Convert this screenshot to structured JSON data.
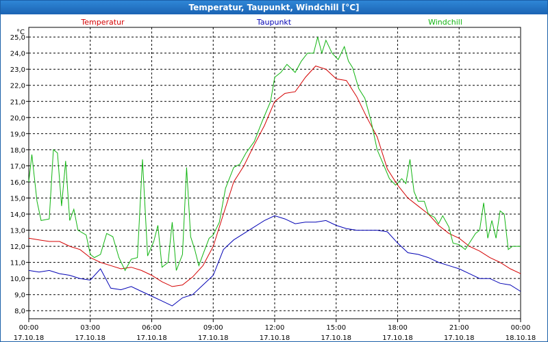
{
  "window": {
    "title": "Temperatur, Taupunkt, Windchill [°C]"
  },
  "chart_data": {
    "type": "line",
    "title": "Temperatur, Taupunkt, Windchill [°C]",
    "ylabel": "°C",
    "ylim": [
      7.5,
      25.6
    ],
    "yticks": [
      "8,0",
      "9,0",
      "10,0",
      "11,0",
      "12,0",
      "13,0",
      "14,0",
      "15,0",
      "16,0",
      "17,0",
      "18,0",
      "19,0",
      "20,0",
      "21,0",
      "22,0",
      "23,0",
      "24,0",
      "25,0"
    ],
    "yticks_values": [
      8,
      9,
      10,
      11,
      12,
      13,
      14,
      15,
      16,
      17,
      18,
      19,
      20,
      21,
      22,
      23,
      24,
      25
    ],
    "xlim": [
      0,
      24
    ],
    "xticks": [
      {
        "x": 0,
        "time": "00:00",
        "date": "17.10.18"
      },
      {
        "x": 3,
        "time": "03:00",
        "date": "17.10.18"
      },
      {
        "x": 6,
        "time": "06:00",
        "date": "17.10.18"
      },
      {
        "x": 9,
        "time": "09:00",
        "date": "17.10.18"
      },
      {
        "x": 12,
        "time": "12:00",
        "date": "17.10.18"
      },
      {
        "x": 15,
        "time": "15:00",
        "date": "17.10.18"
      },
      {
        "x": 18,
        "time": "18:00",
        "date": "17.10.18"
      },
      {
        "x": 21,
        "time": "21:00",
        "date": "17.10.18"
      },
      {
        "x": 24,
        "time": "00:00",
        "date": "18.10.18"
      }
    ],
    "grid": true,
    "legend": "top",
    "series": [
      {
        "name": "Temperatur",
        "color": "#d40000",
        "points": [
          [
            0,
            12.5
          ],
          [
            0.5,
            12.4
          ],
          [
            1,
            12.3
          ],
          [
            1.5,
            12.3
          ],
          [
            2,
            12.0
          ],
          [
            2.5,
            11.8
          ],
          [
            3,
            11.3
          ],
          [
            3.5,
            11.0
          ],
          [
            4,
            10.8
          ],
          [
            4.5,
            10.6
          ],
          [
            5,
            10.7
          ],
          [
            5.5,
            10.5
          ],
          [
            6,
            10.2
          ],
          [
            6.5,
            9.8
          ],
          [
            7,
            9.5
          ],
          [
            7.5,
            9.6
          ],
          [
            8,
            10.1
          ],
          [
            8.5,
            10.8
          ],
          [
            9,
            12.0
          ],
          [
            9.5,
            14.0
          ],
          [
            10,
            16.0
          ],
          [
            10.5,
            17.0
          ],
          [
            11,
            18.3
          ],
          [
            11.5,
            19.5
          ],
          [
            12,
            21.0
          ],
          [
            12.5,
            21.5
          ],
          [
            13,
            21.6
          ],
          [
            13.5,
            22.5
          ],
          [
            14,
            23.2
          ],
          [
            14.5,
            23.0
          ],
          [
            15,
            22.4
          ],
          [
            15.5,
            22.3
          ],
          [
            16,
            21.3
          ],
          [
            16.5,
            20.0
          ],
          [
            17,
            18.8
          ],
          [
            17.5,
            16.8
          ],
          [
            18,
            15.8
          ],
          [
            18.5,
            15.0
          ],
          [
            19,
            14.5
          ],
          [
            19.5,
            14.0
          ],
          [
            20,
            13.3
          ],
          [
            20.5,
            12.8
          ],
          [
            21,
            12.5
          ],
          [
            21.5,
            12.0
          ],
          [
            22,
            11.7
          ],
          [
            22.5,
            11.3
          ],
          [
            23,
            11.0
          ],
          [
            23.5,
            10.6
          ],
          [
            24,
            10.3
          ]
        ]
      },
      {
        "name": "Taupunkt",
        "color": "#0000b4",
        "points": [
          [
            0,
            10.5
          ],
          [
            0.5,
            10.4
          ],
          [
            1,
            10.5
          ],
          [
            1.5,
            10.3
          ],
          [
            2,
            10.2
          ],
          [
            2.5,
            10.0
          ],
          [
            3,
            9.9
          ],
          [
            3.5,
            10.6
          ],
          [
            4,
            9.4
          ],
          [
            4.5,
            9.3
          ],
          [
            5,
            9.5
          ],
          [
            5.5,
            9.2
          ],
          [
            6,
            8.9
          ],
          [
            6.5,
            8.6
          ],
          [
            7,
            8.3
          ],
          [
            7.5,
            8.8
          ],
          [
            8,
            9.0
          ],
          [
            8.5,
            9.6
          ],
          [
            9,
            10.2
          ],
          [
            9.5,
            11.8
          ],
          [
            10,
            12.4
          ],
          [
            10.5,
            12.8
          ],
          [
            11,
            13.2
          ],
          [
            11.5,
            13.6
          ],
          [
            12,
            13.9
          ],
          [
            12.5,
            13.7
          ],
          [
            13,
            13.4
          ],
          [
            13.5,
            13.5
          ],
          [
            14,
            13.5
          ],
          [
            14.5,
            13.6
          ],
          [
            15,
            13.3
          ],
          [
            15.5,
            13.1
          ],
          [
            16,
            13.0
          ],
          [
            16.5,
            13.0
          ],
          [
            17,
            13.0
          ],
          [
            17.5,
            12.9
          ],
          [
            18,
            12.2
          ],
          [
            18.5,
            11.6
          ],
          [
            19,
            11.5
          ],
          [
            19.5,
            11.3
          ],
          [
            20,
            11.0
          ],
          [
            20.5,
            10.8
          ],
          [
            21,
            10.6
          ],
          [
            21.5,
            10.3
          ],
          [
            22,
            10.0
          ],
          [
            22.5,
            10.0
          ],
          [
            23,
            9.7
          ],
          [
            23.5,
            9.6
          ],
          [
            24,
            9.2
          ]
        ]
      },
      {
        "name": "Windchill",
        "color": "#10b410",
        "points": [
          [
            0,
            16.0
          ],
          [
            0.15,
            17.7
          ],
          [
            0.4,
            14.8
          ],
          [
            0.6,
            13.6
          ],
          [
            1,
            13.7
          ],
          [
            1.2,
            18.0
          ],
          [
            1.4,
            17.8
          ],
          [
            1.6,
            14.5
          ],
          [
            1.8,
            17.3
          ],
          [
            2,
            13.6
          ],
          [
            2.2,
            14.3
          ],
          [
            2.4,
            13.0
          ],
          [
            2.8,
            12.7
          ],
          [
            3,
            11.5
          ],
          [
            3.2,
            11.3
          ],
          [
            3.5,
            11.5
          ],
          [
            3.8,
            12.8
          ],
          [
            4.1,
            12.6
          ],
          [
            4.4,
            11.3
          ],
          [
            4.7,
            10.5
          ],
          [
            5,
            11.2
          ],
          [
            5.3,
            11.3
          ],
          [
            5.55,
            17.4
          ],
          [
            5.8,
            11.4
          ],
          [
            6.1,
            12.3
          ],
          [
            6.3,
            13.3
          ],
          [
            6.5,
            10.7
          ],
          [
            6.8,
            11.0
          ],
          [
            7,
            13.5
          ],
          [
            7.2,
            10.5
          ],
          [
            7.5,
            11.5
          ],
          [
            7.7,
            16.9
          ],
          [
            7.9,
            12.6
          ],
          [
            8.1,
            11.8
          ],
          [
            8.3,
            10.8
          ],
          [
            8.5,
            11.5
          ],
          [
            8.8,
            12.5
          ],
          [
            9,
            12.7
          ],
          [
            9.3,
            13.5
          ],
          [
            9.6,
            15.6
          ],
          [
            10,
            16.9
          ],
          [
            10.3,
            17.1
          ],
          [
            10.6,
            17.8
          ],
          [
            11,
            18.5
          ],
          [
            11.4,
            19.8
          ],
          [
            11.8,
            21.0
          ],
          [
            12,
            22.5
          ],
          [
            12.3,
            22.8
          ],
          [
            12.6,
            23.3
          ],
          [
            13,
            22.8
          ],
          [
            13.3,
            23.5
          ],
          [
            13.6,
            24.0
          ],
          [
            13.9,
            24.0
          ],
          [
            14.1,
            25.0
          ],
          [
            14.3,
            24.0
          ],
          [
            14.5,
            24.8
          ],
          [
            14.8,
            24.0
          ],
          [
            15.1,
            23.6
          ],
          [
            15.4,
            24.4
          ],
          [
            15.6,
            23.5
          ],
          [
            15.8,
            23.1
          ],
          [
            16.1,
            21.8
          ],
          [
            16.4,
            21.2
          ],
          [
            16.7,
            19.8
          ],
          [
            17,
            18.0
          ],
          [
            17.3,
            17.1
          ],
          [
            17.6,
            16.2
          ],
          [
            17.9,
            15.8
          ],
          [
            18.2,
            16.2
          ],
          [
            18.4,
            15.9
          ],
          [
            18.6,
            17.4
          ],
          [
            18.8,
            15.4
          ],
          [
            19,
            14.8
          ],
          [
            19.3,
            14.8
          ],
          [
            19.5,
            14.0
          ],
          [
            19.8,
            13.8
          ],
          [
            20,
            13.4
          ],
          [
            20.2,
            13.9
          ],
          [
            20.5,
            13.2
          ],
          [
            20.7,
            12.2
          ],
          [
            21,
            12.1
          ],
          [
            21.3,
            11.8
          ],
          [
            21.5,
            12.2
          ],
          [
            21.8,
            12.8
          ],
          [
            22,
            13.0
          ],
          [
            22.2,
            14.7
          ],
          [
            22.4,
            12.5
          ],
          [
            22.6,
            13.6
          ],
          [
            22.8,
            12.5
          ],
          [
            23,
            14.2
          ],
          [
            23.2,
            14.0
          ],
          [
            23.4,
            11.8
          ],
          [
            23.6,
            12.0
          ],
          [
            24,
            12.0
          ]
        ]
      }
    ]
  }
}
